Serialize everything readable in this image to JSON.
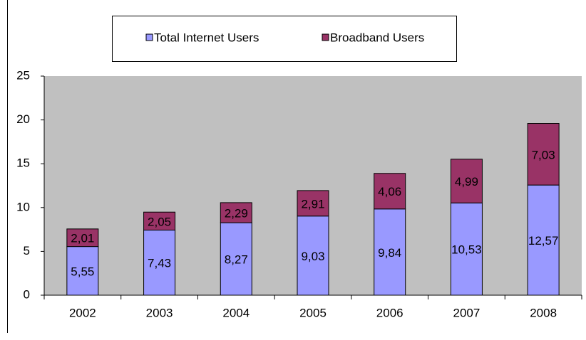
{
  "chart_data": {
    "type": "stacked_bar",
    "categories": [
      "2002",
      "2003",
      "2004",
      "2005",
      "2006",
      "2007",
      "2008"
    ],
    "series": [
      {
        "name": "Total Internet Users",
        "color": "#9999ff",
        "values": [
          5.55,
          7.43,
          8.27,
          9.03,
          9.84,
          10.53,
          12.57
        ],
        "value_labels": [
          "5,55",
          "7,43",
          "8,27",
          "9,03",
          "9,84",
          "10,53",
          "12,57"
        ]
      },
      {
        "name": "Broadband Users",
        "color": "#993366",
        "values": [
          2.01,
          2.05,
          2.29,
          2.91,
          4.06,
          4.99,
          7.03
        ],
        "value_labels": [
          "2,01",
          "2,05",
          "2,29",
          "2,91",
          "4,06",
          "4,99",
          "7,03"
        ]
      }
    ],
    "ylim": [
      0,
      25
    ],
    "yticks": [
      0,
      5,
      10,
      15,
      20,
      25
    ],
    "plot_background": "#c0c0c0",
    "legend": "top"
  }
}
